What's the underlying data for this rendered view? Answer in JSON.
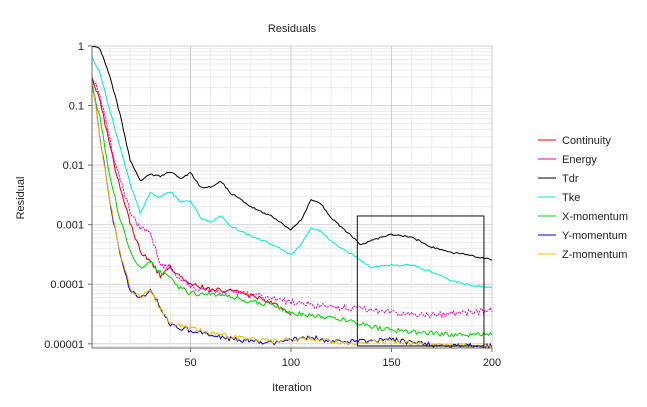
{
  "chart_data": {
    "type": "line",
    "title": "Residuals",
    "xlabel": "Iteration",
    "ylabel": "Residual",
    "xlim": [
      1,
      200
    ],
    "ylim": [
      8.5e-06,
      1
    ],
    "yscale": "log",
    "grid": true,
    "legend_position": "right",
    "x_ticks": [
      50,
      100,
      150,
      200
    ],
    "x_tick_labels": [
      "50",
      "100",
      "150",
      "200"
    ],
    "y_ticks": [
      1,
      0.1,
      0.01,
      0.001,
      0.0001,
      1e-05
    ],
    "y_tick_labels": [
      "1",
      "0.1",
      "0.01",
      "0.001",
      "0.0001",
      "0.00001"
    ],
    "zoom_box": {
      "x_range": [
        133,
        196
      ],
      "y_range": [
        9.2e-06,
        0.0014
      ]
    },
    "series": [
      {
        "name": "Continuity",
        "color": "#e00000",
        "points": [
          [
            1,
            0.28
          ],
          [
            5,
            0.12
          ],
          [
            10,
            0.02
          ],
          [
            15,
            0.004
          ],
          [
            20,
            0.0011
          ],
          [
            25,
            0.00035
          ],
          [
            30,
            0.00024
          ],
          [
            35,
            0.00014
          ],
          [
            40,
            0.0002
          ],
          [
            45,
            0.00013
          ],
          [
            50,
            0.000105
          ],
          [
            55,
            9e-05
          ],
          [
            60,
            8.2e-05
          ],
          [
            70,
            7.8e-05
          ],
          [
            80,
            6.5e-05
          ],
          [
            90,
            5e-05
          ],
          [
            100,
            3e-05
          ]
        ]
      },
      {
        "name": "Energy",
        "color": "#e000c8",
        "points": [
          [
            1,
            0.32
          ],
          [
            5,
            0.14
          ],
          [
            10,
            0.025
          ],
          [
            15,
            0.0055
          ],
          [
            20,
            0.0016
          ],
          [
            25,
            0.00085
          ],
          [
            30,
            0.00075
          ],
          [
            35,
            0.00022
          ],
          [
            40,
            0.00019
          ],
          [
            45,
            0.00012
          ],
          [
            50,
            9.2e-05
          ],
          [
            60,
            7.8e-05
          ],
          [
            70,
            7.4e-05
          ],
          [
            80,
            6.6e-05
          ],
          [
            90,
            5.7e-05
          ],
          [
            100,
            5e-05
          ],
          [
            110,
            4.5e-05
          ],
          [
            120,
            4.2e-05
          ],
          [
            130,
            4e-05
          ],
          [
            140,
            3.7e-05
          ],
          [
            150,
            3.4e-05
          ],
          [
            160,
            3.1e-05
          ],
          [
            170,
            3e-05
          ],
          [
            180,
            3.2e-05
          ],
          [
            190,
            3.4e-05
          ],
          [
            200,
            3.6e-05
          ]
        ]
      },
      {
        "name": "Tdr",
        "color": "#000000",
        "points": [
          [
            1,
            1.0
          ],
          [
            5,
            0.9
          ],
          [
            10,
            0.3
          ],
          [
            15,
            0.07
          ],
          [
            20,
            0.012
          ],
          [
            25,
            0.0054
          ],
          [
            30,
            0.007
          ],
          [
            35,
            0.0065
          ],
          [
            40,
            0.0078
          ],
          [
            45,
            0.0058
          ],
          [
            50,
            0.0075
          ],
          [
            55,
            0.0042
          ],
          [
            60,
            0.0043
          ],
          [
            65,
            0.0054
          ],
          [
            70,
            0.0034
          ],
          [
            80,
            0.002
          ],
          [
            90,
            0.0014
          ],
          [
            100,
            0.00082
          ],
          [
            105,
            0.0012
          ],
          [
            110,
            0.0026
          ],
          [
            115,
            0.0022
          ],
          [
            120,
            0.0013
          ],
          [
            130,
            0.00065
          ],
          [
            135,
            0.00045
          ],
          [
            140,
            0.00055
          ],
          [
            150,
            0.00068
          ],
          [
            160,
            0.00062
          ],
          [
            170,
            0.00042
          ],
          [
            180,
            0.00034
          ],
          [
            190,
            0.0003
          ],
          [
            200,
            0.00026
          ]
        ]
      },
      {
        "name": "Tke",
        "color": "#00e6e6",
        "points": [
          [
            1,
            0.65
          ],
          [
            5,
            0.35
          ],
          [
            10,
            0.08
          ],
          [
            15,
            0.02
          ],
          [
            20,
            0.0048
          ],
          [
            25,
            0.0016
          ],
          [
            30,
            0.0034
          ],
          [
            35,
            0.0029
          ],
          [
            40,
            0.0036
          ],
          [
            45,
            0.0024
          ],
          [
            50,
            0.0025
          ],
          [
            55,
            0.0013
          ],
          [
            60,
            0.0011
          ],
          [
            65,
            0.0014
          ],
          [
            70,
            0.00095
          ],
          [
            80,
            0.00065
          ],
          [
            90,
            0.00048
          ],
          [
            100,
            0.00031
          ],
          [
            105,
            0.00046
          ],
          [
            110,
            0.00088
          ],
          [
            115,
            0.00078
          ],
          [
            120,
            0.00052
          ],
          [
            130,
            0.00032
          ],
          [
            140,
            0.00019
          ],
          [
            150,
            0.00021
          ],
          [
            160,
            0.00021
          ],
          [
            170,
            0.00016
          ],
          [
            180,
            0.000115
          ],
          [
            190,
            9.5e-05
          ],
          [
            200,
            8.8e-05
          ]
        ]
      },
      {
        "name": "X-momentum",
        "color": "#00d400",
        "points": [
          [
            1,
            0.22
          ],
          [
            5,
            0.06
          ],
          [
            10,
            0.006
          ],
          [
            15,
            0.0012
          ],
          [
            20,
            0.00035
          ],
          [
            25,
            0.00018
          ],
          [
            30,
            0.00023
          ],
          [
            35,
            0.00016
          ],
          [
            40,
            0.00012
          ],
          [
            45,
            8.5e-05
          ],
          [
            50,
            7e-05
          ],
          [
            60,
            6.6e-05
          ],
          [
            70,
            6e-05
          ],
          [
            80,
            5.2e-05
          ],
          [
            90,
            4.5e-05
          ],
          [
            100,
            3.3e-05
          ],
          [
            110,
            3e-05
          ],
          [
            120,
            2.7e-05
          ],
          [
            130,
            2.4e-05
          ],
          [
            140,
            1.9e-05
          ],
          [
            150,
            1.7e-05
          ],
          [
            160,
            1.6e-05
          ],
          [
            170,
            1.5e-05
          ],
          [
            180,
            1.4e-05
          ],
          [
            190,
            1.4e-05
          ],
          [
            200,
            1.5e-05
          ]
        ]
      },
      {
        "name": "Y-momentum",
        "color": "#0000d8",
        "points": [
          [
            1,
            0.3
          ],
          [
            5,
            0.03
          ],
          [
            10,
            0.0022
          ],
          [
            15,
            0.00032
          ],
          [
            20,
            7.8e-05
          ],
          [
            25,
            5.5e-05
          ],
          [
            30,
            8e-05
          ],
          [
            35,
            4.2e-05
          ],
          [
            40,
            2e-05
          ],
          [
            50,
            1.7e-05
          ],
          [
            60,
            1.4e-05
          ],
          [
            70,
            1.2e-05
          ],
          [
            80,
            1.1e-05
          ],
          [
            90,
            1.02e-05
          ],
          [
            100,
            1.15e-05
          ],
          [
            110,
            1.28e-05
          ],
          [
            120,
            1.1e-05
          ],
          [
            130,
            1.08e-05
          ],
          [
            140,
            1.12e-05
          ],
          [
            150,
            1.18e-05
          ],
          [
            160,
            1.05e-05
          ],
          [
            170,
            9.6e-06
          ],
          [
            180,
            9.3e-06
          ],
          [
            190,
            9.2e-06
          ],
          [
            200,
            9.1e-06
          ]
        ]
      },
      {
        "name": "Z-momentum",
        "color": "#f0b800",
        "points": [
          [
            1,
            0.28
          ],
          [
            5,
            0.028
          ],
          [
            10,
            0.0024
          ],
          [
            15,
            0.00034
          ],
          [
            20,
            8.5e-05
          ],
          [
            25,
            6e-05
          ],
          [
            30,
            7.8e-05
          ],
          [
            35,
            4e-05
          ],
          [
            40,
            2.2e-05
          ],
          [
            50,
            1.8e-05
          ],
          [
            60,
            1.5e-05
          ],
          [
            70,
            1.3e-05
          ],
          [
            80,
            1.2e-05
          ],
          [
            90,
            1.1e-05
          ],
          [
            100,
            1.18e-05
          ],
          [
            110,
            1.25e-05
          ],
          [
            120,
            1.08e-05
          ],
          [
            130,
            1.03e-05
          ],
          [
            140,
            1.1e-05
          ],
          [
            150,
            1.12e-05
          ],
          [
            160,
            1.02e-05
          ],
          [
            170,
            9.5e-06
          ],
          [
            180,
            9.2e-06
          ],
          [
            190,
            9.1e-06
          ],
          [
            200,
            9e-06
          ]
        ]
      }
    ]
  }
}
